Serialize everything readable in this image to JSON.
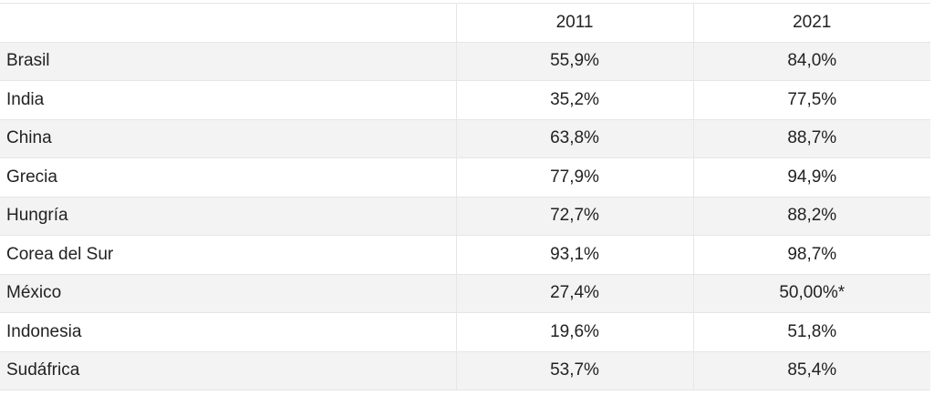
{
  "table": {
    "header": [
      "2011",
      "2021"
    ],
    "rows": [
      [
        "Brasil",
        "55,9%",
        "84,0%"
      ],
      [
        "India",
        "35,2%",
        "77,5%"
      ],
      [
        "China",
        "63,8%",
        "88,7%"
      ],
      [
        "Grecia",
        "77,9%",
        "94,9%"
      ],
      [
        "Hungría",
        "72,7%",
        "88,2%"
      ],
      [
        "Corea del Sur",
        "93,1%",
        "98,7%"
      ],
      [
        "México",
        "27,4%",
        "50,00%*"
      ],
      [
        "Indonesia",
        "19,6%",
        "51,8%"
      ],
      [
        "Sudáfrica",
        "53,7%",
        "85,4%"
      ]
    ]
  }
}
